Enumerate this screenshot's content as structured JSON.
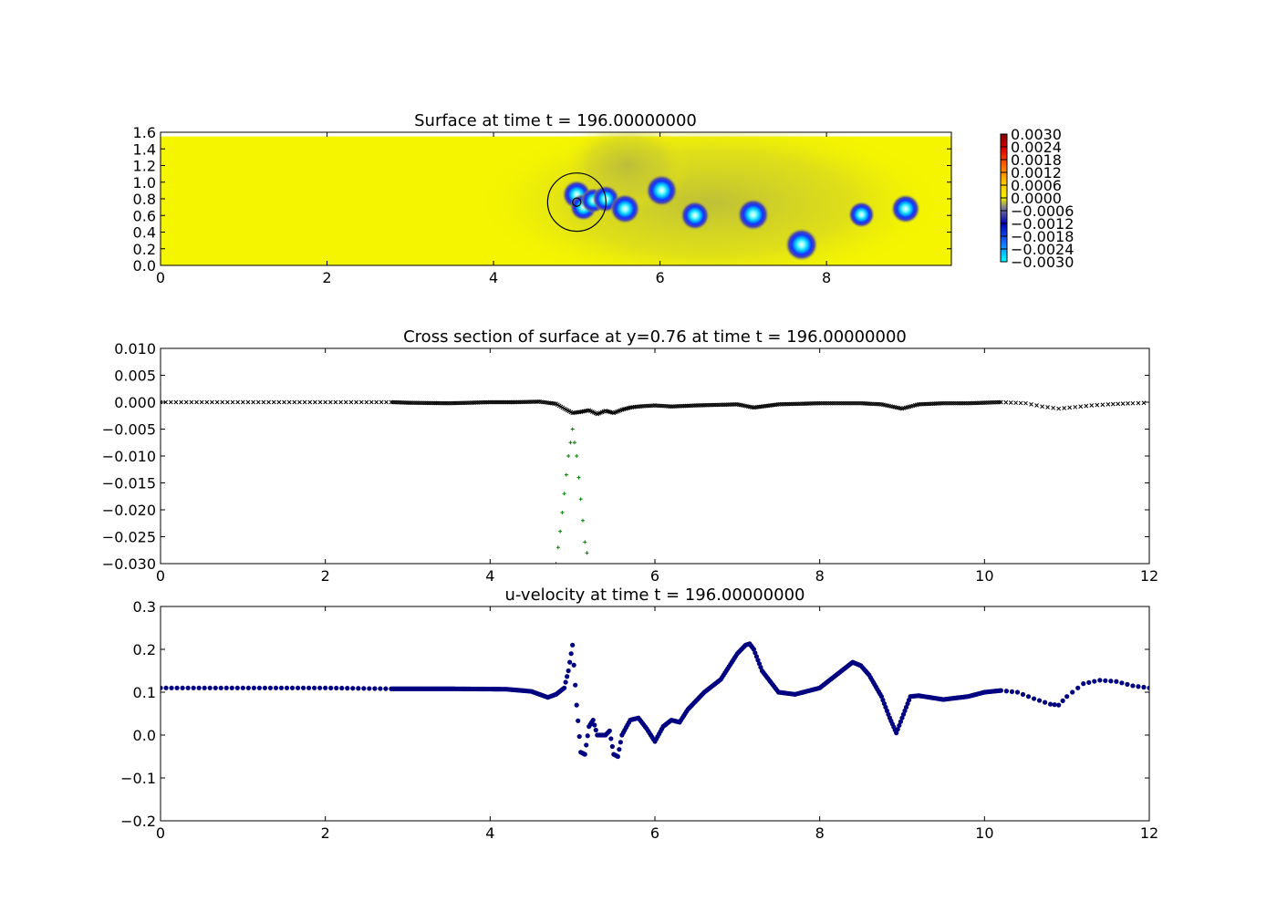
{
  "chart_data": [
    {
      "type": "heatmap",
      "title": "Surface at time t =   196.00000000",
      "xlim": [
        0,
        9.5
      ],
      "ylim": [
        0,
        1.6
      ],
      "xticks": [
        "0",
        "2",
        "4",
        "6",
        "8"
      ],
      "yticks": [
        "0.0",
        "0.2",
        "0.4",
        "0.6",
        "0.8",
        "1.0",
        "1.2",
        "1.4",
        "1.6"
      ],
      "domain": {
        "x": [
          0,
          9.5
        ],
        "y": [
          0,
          1.55
        ]
      },
      "colorbar": {
        "range": [
          -0.003,
          0.003
        ],
        "ticks": [
          "0.0030",
          "0.0024",
          "0.0018",
          "0.0012",
          "0.0006",
          "0.0000",
          "−0.0006",
          "−0.0012",
          "−0.0018",
          "−0.0024",
          "−0.0030"
        ]
      },
      "depressions": [
        {
          "x": 5.0,
          "y": 0.85,
          "strength": 0.8
        },
        {
          "x": 5.08,
          "y": 0.7,
          "strength": 0.7
        },
        {
          "x": 5.2,
          "y": 0.78,
          "strength": 0.6
        },
        {
          "x": 5.35,
          "y": 0.8,
          "strength": 0.7
        },
        {
          "x": 5.58,
          "y": 0.68,
          "strength": 0.85
        },
        {
          "x": 6.02,
          "y": 0.9,
          "strength": 0.95
        },
        {
          "x": 6.42,
          "y": 0.6,
          "strength": 0.8
        },
        {
          "x": 7.12,
          "y": 0.61,
          "strength": 0.95
        },
        {
          "x": 7.7,
          "y": 0.25,
          "strength": 1.0
        },
        {
          "x": 8.42,
          "y": 0.61,
          "strength": 0.65
        },
        {
          "x": 8.95,
          "y": 0.68,
          "strength": 0.8
        }
      ],
      "circle": {
        "x": 5.0,
        "y": 0.76,
        "r": 0.35
      },
      "small_circle": {
        "x": 5.0,
        "y": 0.76,
        "r": 0.05
      },
      "colors": {
        "background": "#f5f500",
        "shadow": "#b9ba3d"
      }
    },
    {
      "type": "scatter",
      "title": "Cross section of surface at y=0.76 at time t =   196.00000000",
      "xlim": [
        0,
        12
      ],
      "ylim": [
        -0.03,
        0.01
      ],
      "xticks": [
        "0",
        "2",
        "4",
        "6",
        "8",
        "10",
        "12"
      ],
      "yticks": [
        "0.010",
        "0.005",
        "0.000",
        "−0.005",
        "−0.010",
        "−0.015",
        "−0.020",
        "−0.025",
        "−0.030"
      ],
      "series": [
        {
          "marker": "x",
          "color": "#000000",
          "x": [
            0,
            0.25,
            0.5,
            0.75,
            1.0,
            1.25,
            1.5,
            1.75,
            2.0,
            2.25,
            2.5,
            2.8,
            3.0,
            3.5,
            4.0,
            4.3,
            4.6,
            4.8,
            4.9,
            5.0,
            5.1,
            5.2,
            5.3,
            5.4,
            5.5,
            5.6,
            5.7,
            5.8,
            6.0,
            6.2,
            6.5,
            7.0,
            7.2,
            7.5,
            8.0,
            8.5,
            8.75,
            9.0,
            9.2,
            9.5,
            9.8,
            10.2,
            10.5,
            10.7,
            10.9,
            11.1,
            11.3,
            11.5,
            11.8,
            12.0
          ],
          "y": [
            0.0,
            0.0,
            0.0,
            0.0,
            0.0,
            0.0,
            0.0,
            0.0,
            0.0,
            0.0,
            0.0,
            0.0,
            -0.0001,
            -0.0002,
            0.0,
            0.0,
            0.0001,
            -0.0003,
            -0.0012,
            -0.002,
            -0.0018,
            -0.0015,
            -0.0022,
            -0.0016,
            -0.002,
            -0.0014,
            -0.001,
            -0.0008,
            -0.0006,
            -0.0008,
            -0.0006,
            -0.0004,
            -0.001,
            -0.0004,
            -0.0002,
            -0.0002,
            -0.0004,
            -0.0012,
            -0.0004,
            -0.0002,
            -0.0002,
            0.0,
            -0.0002,
            -0.0008,
            -0.0012,
            -0.0009,
            -0.0006,
            -0.0004,
            -0.0002,
            -0.0001
          ]
        },
        {
          "marker": "+",
          "color": "#008000",
          "x": [
            4.8,
            4.85,
            4.9,
            4.95,
            5.0,
            5.05,
            5.1,
            5.15,
            5.2
          ],
          "y": [
            -0.03,
            -0.024,
            -0.017,
            -0.01,
            -0.005,
            -0.01,
            -0.018,
            -0.026,
            -0.03
          ]
        }
      ]
    },
    {
      "type": "scatter",
      "title": "u-velocity at time t =   196.00000000",
      "xlim": [
        0,
        12
      ],
      "ylim": [
        -0.2,
        0.3
      ],
      "xticks": [
        "0",
        "2",
        "4",
        "6",
        "8",
        "10",
        "12"
      ],
      "yticks": [
        "0.3",
        "0.2",
        "0.1",
        "0.0",
        "−0.1",
        "−0.2"
      ],
      "series": [
        {
          "marker": "o",
          "color": "#000080",
          "x": [
            0,
            1.0,
            2.0,
            2.8,
            3.5,
            4.2,
            4.5,
            4.7,
            4.8,
            4.9,
            4.95,
            5.0,
            5.05,
            5.1,
            5.15,
            5.2,
            5.25,
            5.3,
            5.4,
            5.45,
            5.5,
            5.55,
            5.6,
            5.7,
            5.8,
            5.9,
            6.0,
            6.1,
            6.2,
            6.3,
            6.4,
            6.6,
            6.8,
            7.0,
            7.1,
            7.15,
            7.2,
            7.3,
            7.5,
            7.7,
            8.0,
            8.2,
            8.4,
            8.5,
            8.6,
            8.75,
            8.85,
            8.93,
            9.0,
            9.1,
            9.2,
            9.5,
            9.8,
            10.0,
            10.2,
            10.4,
            10.6,
            10.8,
            10.9,
            11.0,
            11.2,
            11.4,
            11.6,
            11.8,
            12.0
          ],
          "y": [
            0.11,
            0.11,
            0.11,
            0.108,
            0.108,
            0.107,
            0.102,
            0.088,
            0.095,
            0.11,
            0.15,
            0.21,
            0.07,
            -0.04,
            -0.045,
            0.02,
            0.035,
            0.0,
            0.0,
            0.01,
            -0.045,
            -0.05,
            0.0,
            0.035,
            0.04,
            0.015,
            -0.015,
            0.02,
            0.035,
            0.03,
            0.06,
            0.1,
            0.13,
            0.19,
            0.21,
            0.213,
            0.2,
            0.15,
            0.1,
            0.095,
            0.11,
            0.14,
            0.17,
            0.162,
            0.14,
            0.09,
            0.04,
            0.005,
            0.04,
            0.09,
            0.092,
            0.083,
            0.09,
            0.1,
            0.104,
            0.1,
            0.085,
            0.072,
            0.07,
            0.09,
            0.12,
            0.128,
            0.125,
            0.115,
            0.11
          ]
        }
      ]
    }
  ]
}
